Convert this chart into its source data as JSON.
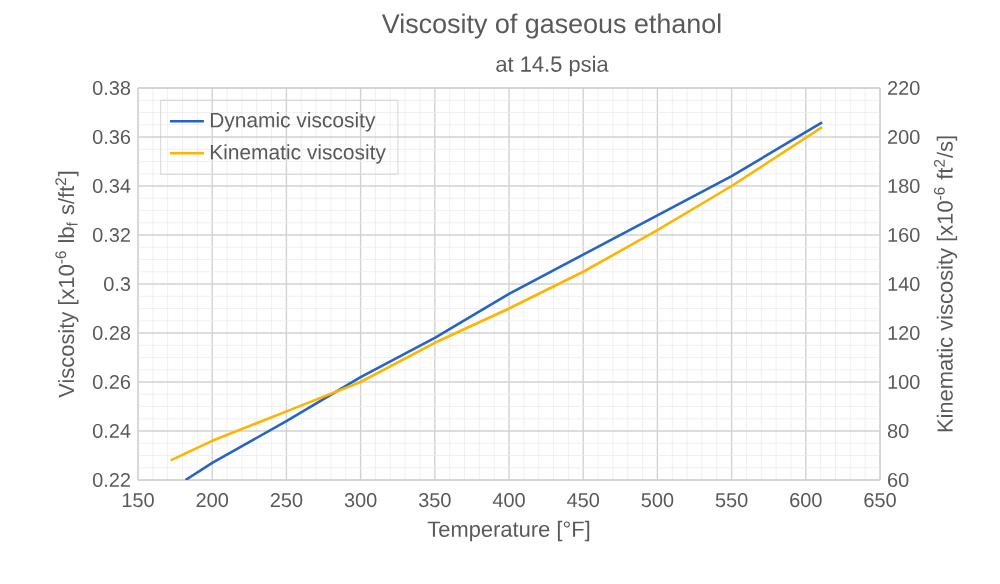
{
  "chart_data": {
    "type": "line",
    "title": "Viscosity of gaseous ethanol",
    "subtitle": "at 14.5 psia",
    "xlabel": "Temperature [°F]",
    "ylabel": "Viscosity  [x10$^{-6}$ lb$_{f}$ s/ft$^{2}$]",
    "y2label": "Kinematic viscosity  [x10$^{-6}$ ft$^{2}$/s]",
    "series": [
      {
        "name": "Dynamic viscosity",
        "color": "#2563c4",
        "x": [
          182,
          200,
          250,
          300,
          350,
          400,
          450,
          500,
          550,
          611
        ],
        "values": [
          0.22,
          0.227,
          0.244,
          0.262,
          0.278,
          0.296,
          0.312,
          0.328,
          0.344,
          0.366
        ]
      },
      {
        "name": "Kinematic viscosity",
        "color": "#ffb400",
        "axis": "y2",
        "x": [
          172,
          200,
          250,
          300,
          350,
          400,
          450,
          500,
          550,
          611
        ],
        "values": [
          68,
          76,
          88,
          100,
          116,
          130,
          145,
          162,
          180,
          204
        ]
      }
    ],
    "xlim": [
      150,
      650
    ],
    "xticks": [
      150,
      200,
      250,
      300,
      350,
      400,
      450,
      500,
      550,
      600,
      650
    ],
    "ylim": [
      0.22,
      0.38
    ],
    "yticks": [
      0.22,
      0.24,
      0.26,
      0.28,
      0.3,
      0.32,
      0.34,
      0.36,
      0.38
    ],
    "y2lim": [
      60,
      220
    ],
    "y2ticks": [
      60,
      80,
      100,
      120,
      140,
      160,
      180,
      200,
      220
    ],
    "grid": true,
    "legend": "top left",
    "marker": "none",
    "line_style": "solid"
  }
}
